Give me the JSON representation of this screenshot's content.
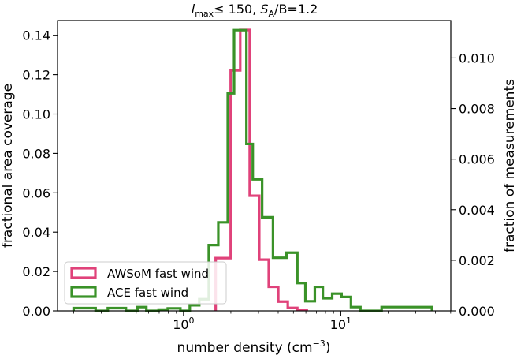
{
  "chart_data": {
    "type": "histogram-step",
    "title": {
      "l": "l",
      "l_sub": "max",
      "le": "≤ 150, ",
      "s": "S",
      "s_sub": "A",
      "rest": "/B=1.2"
    },
    "xlabel": "number density (cm",
    "xlabel_sup": "−3",
    "xlabel_tail": ")",
    "ylabel_left": "fractional area coverage",
    "ylabel_right": "fraction of measurements",
    "x_scale": "log",
    "xlim": [
      0.158,
      50.1
    ],
    "ylim_left": [
      0,
      0.1475
    ],
    "ylim_right": [
      0,
      0.01148
    ],
    "x_ticks": [
      {
        "value": 1,
        "base": "10",
        "exp": "0"
      },
      {
        "value": 10,
        "base": "10",
        "exp": "1"
      }
    ],
    "y_ticks_left": [
      {
        "value": 0,
        "label": "0.00"
      },
      {
        "value": 0.02,
        "label": "0.02"
      },
      {
        "value": 0.04,
        "label": "0.04"
      },
      {
        "value": 0.06,
        "label": "0.06"
      },
      {
        "value": 0.08,
        "label": "0.08"
      },
      {
        "value": 0.1,
        "label": "0.10"
      },
      {
        "value": 0.12,
        "label": "0.12"
      },
      {
        "value": 0.14,
        "label": "0.14"
      }
    ],
    "y_ticks_right": [
      {
        "value": 0,
        "label": "0.000"
      },
      {
        "value": 0.002,
        "label": "0.002"
      },
      {
        "value": 0.004,
        "label": "0.004"
      },
      {
        "value": 0.006,
        "label": "0.006"
      },
      {
        "value": 0.008,
        "label": "0.008"
      },
      {
        "value": 0.01,
        "label": "0.010"
      }
    ],
    "legend_position": "lower-left",
    "series": [
      {
        "name": "AWSoM fast wind",
        "color": "#e0427a",
        "axis": "left",
        "edges": [
          1.601,
          1.995,
          2.294,
          2.636,
          3.031,
          3.483,
          4.004,
          4.603,
          5.29,
          6.081
        ],
        "values": [
          0.0268,
          0.1222,
          0.1427,
          0.0585,
          0.026,
          0.0122,
          0.0047,
          0.0015,
          0.0005
        ]
      },
      {
        "name": "ACE fast wind",
        "color": "#3a9228",
        "axis": "right",
        "edges": [
          0.2,
          0.276,
          0.33,
          0.43,
          0.51,
          0.58,
          0.694,
          0.794,
          0.955,
          1.096,
          1.259,
          1.4475,
          1.6634,
          1.9111,
          2.0966,
          2.2878,
          2.5118,
          2.7564,
          3.1623,
          3.7068,
          4.5186,
          5.2966,
          5.9566,
          6.8391,
          7.6913,
          8.8213,
          10.117,
          11.612,
          13.335,
          15.306,
          18.195,
          21.638,
          31.623,
          38.019
        ],
        "values": [
          0.00011,
          0,
          0.00011,
          0,
          0.00015,
          0,
          5e-05,
          0.0001,
          0,
          0.00022,
          0.00046,
          0.0026,
          0.0035,
          0.0086,
          0.0111,
          0.0111,
          0.0066,
          0.0052,
          0.0037,
          0.0021,
          0.0023,
          0.0011,
          0.00038,
          0.00095,
          0.0005,
          0.00068,
          0.00055,
          0.00015,
          0,
          0,
          0.00015,
          0.00015,
          0.00015
        ]
      }
    ]
  }
}
